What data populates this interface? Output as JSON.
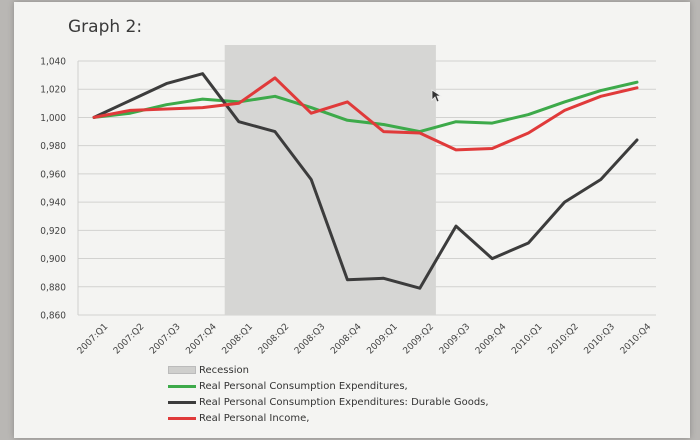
{
  "chart_data": {
    "type": "line",
    "title": "Graph 2:",
    "categories": [
      "2007:Q1",
      "2007:Q2",
      "2007:Q3",
      "2007:Q4",
      "2008:Q1",
      "2008:Q2",
      "2008:Q3",
      "2008:Q4",
      "2009:Q1",
      "2009:Q2",
      "2009:Q3",
      "2009:Q4",
      "2010:Q1",
      "2010:Q2",
      "2010:Q3",
      "2010:Q4"
    ],
    "y_ticks": [
      "1,040",
      "1,020",
      "1,000",
      "0,980",
      "0,960",
      "0,940",
      "0,920",
      "0,900",
      "0,880",
      "0,860"
    ],
    "ylim": [
      0.86,
      1.04
    ],
    "grid": true,
    "legend_placement": "bottom",
    "recession": {
      "label": "Recession",
      "start": "2008:Q1",
      "end": "2009:Q2",
      "color": "#d6d6d4"
    },
    "series": [
      {
        "name": "Real Personal Consumption Expenditures,",
        "color": "#3daa4a",
        "values": [
          1.0,
          1.003,
          1.009,
          1.013,
          1.011,
          1.015,
          1.007,
          0.998,
          0.995,
          0.99,
          0.997,
          0.996,
          1.002,
          1.011,
          1.019,
          1.025
        ]
      },
      {
        "name": "Real Personal Consumption Expenditures: Durable Goods,",
        "color": "#3c3c3c",
        "values": [
          1.0,
          1.012,
          1.024,
          1.031,
          0.997,
          0.99,
          0.956,
          0.885,
          0.886,
          0.879,
          0.923,
          0.9,
          0.911,
          0.94,
          0.956,
          0.984
        ]
      },
      {
        "name": "Real Personal Income,",
        "color": "#e03a3a",
        "values": [
          1.0,
          1.005,
          1.006,
          1.007,
          1.01,
          1.028,
          1.003,
          1.011,
          0.99,
          0.989,
          0.977,
          0.978,
          0.989,
          1.005,
          1.015,
          1.021
        ]
      }
    ]
  }
}
